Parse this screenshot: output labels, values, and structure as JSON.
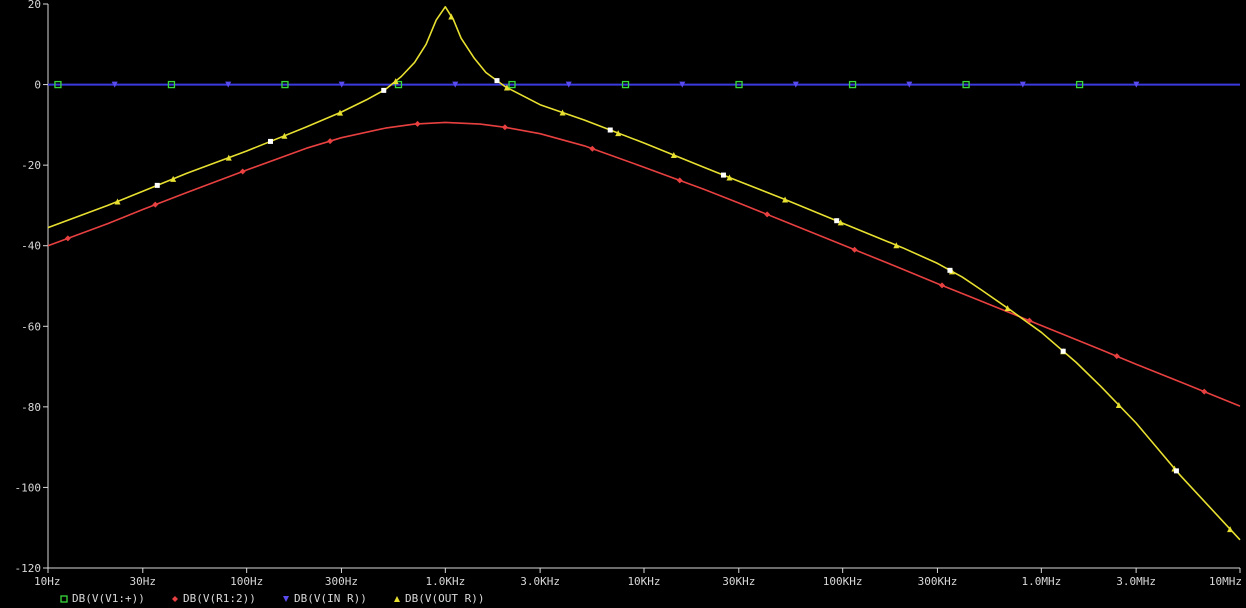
{
  "chart_data": {
    "type": "line",
    "xscale": "log",
    "xlim": [
      10,
      10000000
    ],
    "ylim": [
      -120,
      20
    ],
    "grid": false,
    "legend_placement": "bottom-left",
    "x_ticks": [
      {
        "value": 10,
        "label": "10Hz"
      },
      {
        "value": 30,
        "label": "30Hz"
      },
      {
        "value": 100,
        "label": "100Hz"
      },
      {
        "value": 300,
        "label": "300Hz"
      },
      {
        "value": 1000,
        "label": "1.0KHz"
      },
      {
        "value": 3000,
        "label": "3.0KHz"
      },
      {
        "value": 10000,
        "label": "10KHz"
      },
      {
        "value": 30000,
        "label": "30KHz"
      },
      {
        "value": 100000,
        "label": "100KHz"
      },
      {
        "value": 300000,
        "label": "300KHz"
      },
      {
        "value": 1000000,
        "label": "1.0MHz"
      },
      {
        "value": 3000000,
        "label": "3.0MHz"
      },
      {
        "value": 10000000,
        "label": "10MHz"
      }
    ],
    "y_ticks": [
      {
        "value": 20,
        "label": "20"
      },
      {
        "value": 0,
        "label": "0"
      },
      {
        "value": -20,
        "label": "-20"
      },
      {
        "value": -40,
        "label": "-40"
      },
      {
        "value": -60,
        "label": "-60"
      },
      {
        "value": -80,
        "label": "-80"
      },
      {
        "value": -100,
        "label": "-100"
      },
      {
        "value": -120,
        "label": "-120"
      }
    ],
    "series": [
      {
        "name": "DB(V(V1:+))",
        "color": "#7a3cc8",
        "marker": "square",
        "marker_color": "#39d83a",
        "x": [
          10,
          10000000
        ],
        "y": [
          0,
          0
        ]
      },
      {
        "name": "DB(V(R1:2))",
        "color": "#e84040",
        "marker": "diamond",
        "marker_color": "#e84040",
        "x": [
          10,
          20,
          30,
          50,
          100,
          200,
          300,
          500,
          700,
          1000,
          1500,
          2000,
          3000,
          5000,
          10000,
          20000,
          30000,
          50000,
          100000,
          200000,
          300000,
          500000,
          1000000,
          2000000,
          3000000,
          5000000,
          10000000
        ],
        "y": [
          -40,
          -34.5,
          -31,
          -26.8,
          -21.2,
          -15.8,
          -13.2,
          -10.8,
          -9.8,
          -9.4,
          -9.8,
          -10.6,
          -12.2,
          -15.2,
          -20.5,
          -26,
          -29.4,
          -33.8,
          -39.8,
          -45.8,
          -49.4,
          -53.8,
          -59.8,
          -65.8,
          -69.4,
          -73.8,
          -79.8
        ]
      },
      {
        "name": "DB(V(OUT R))",
        "color": "#e8e030",
        "marker": "triangle",
        "marker_color": "#e8e030",
        "x": [
          10,
          20,
          30,
          50,
          100,
          200,
          300,
          400,
          500,
          600,
          700,
          800,
          900,
          1000,
          1100,
          1200,
          1400,
          1600,
          2000,
          3000,
          5000,
          10000,
          20000,
          30000,
          50000,
          100000,
          200000,
          300000,
          400000,
          500000,
          700000,
          1000000,
          1500000,
          2000000,
          3000000,
          5000000,
          10000000
        ],
        "y": [
          -35.5,
          -30,
          -26.5,
          -22,
          -16.5,
          -10.5,
          -6.8,
          -3.8,
          -1.2,
          2,
          5.5,
          10,
          16,
          19.3,
          16,
          11.5,
          6.5,
          3,
          -0.5,
          -5,
          -8.8,
          -14.5,
          -20.5,
          -24,
          -28.3,
          -34.4,
          -40.5,
          -44.4,
          -47.8,
          -51,
          -56,
          -61.5,
          -69,
          -75,
          -84,
          -97,
          -113
        ]
      }
    ],
    "legend": [
      {
        "label": "DB(V(V1:+))",
        "marker": "square",
        "color": "#39d83a"
      },
      {
        "label": "DB(V(R1:2))",
        "marker": "diamond",
        "color": "#e84040"
      },
      {
        "label": "DB(V(IN R))",
        "marker": "triangle-down",
        "color": "#5a4cf0"
      },
      {
        "label": "DB(V(OUT R))",
        "marker": "triangle",
        "color": "#e8e030"
      }
    ],
    "colors": {
      "background": "#000000",
      "axis": "#d8d8d8",
      "in_r": "#3a3adf",
      "v1": "#7a3cc8",
      "r1": "#e84040",
      "out_r": "#e8e030",
      "white_marker": "#ffffff"
    }
  }
}
